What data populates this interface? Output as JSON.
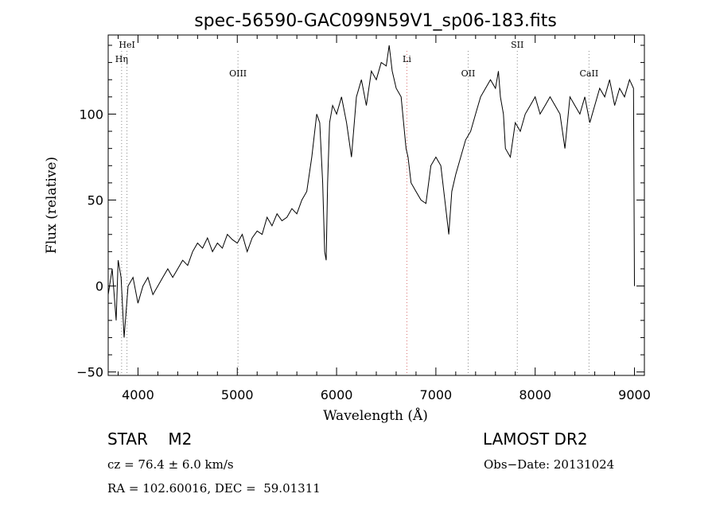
{
  "chart_data": {
    "type": "line",
    "title": "spec-56590-GAC099N59V1_sp06-183.fits",
    "xlabel": "Wavelength (Å)",
    "ylabel": "Flux (relative)",
    "xlim": [
      3700,
      9100
    ],
    "ylim": [
      -52,
      146
    ],
    "xticks": [
      4000,
      5000,
      6000,
      7000,
      8000,
      9000
    ],
    "yticks": [
      -50,
      0,
      50,
      100
    ],
    "xtick_labels": [
      "4000",
      "5000",
      "6000",
      "7000",
      "8000",
      "9000"
    ],
    "ytick_labels": [
      "−50",
      "0",
      "50",
      "100"
    ],
    "series": [
      {
        "x": [
          3700,
          3740,
          3780,
          3800,
          3830,
          3860,
          3900,
          3950,
          4000,
          4050,
          4100,
          4150,
          4200,
          4250,
          4300,
          4350,
          4400,
          4450,
          4500,
          4550,
          4600,
          4650,
          4700,
          4750,
          4800,
          4850,
          4900,
          4950,
          5000,
          5050,
          5100,
          5150,
          5200,
          5250,
          5300,
          5350,
          5400,
          5450,
          5500,
          5550,
          5600,
          5650,
          5700,
          5750,
          5800,
          5830,
          5860,
          5880,
          5895,
          5910,
          5930,
          5960,
          6000,
          6050,
          6100,
          6150,
          6200,
          6250,
          6300,
          6350,
          6400,
          6450,
          6500,
          6530,
          6560,
          6600,
          6650,
          6700,
          6720,
          6750,
          6800,
          6850,
          6900,
          6950,
          7000,
          7050,
          7100,
          7130,
          7160,
          7200,
          7250,
          7300,
          7350,
          7400,
          7450,
          7500,
          7550,
          7600,
          7630,
          7650,
          7680,
          7700,
          7750,
          7800,
          7850,
          7900,
          7950,
          8000,
          8050,
          8100,
          8150,
          8200,
          8250,
          8300,
          8350,
          8400,
          8450,
          8500,
          8550,
          8600,
          8650,
          8700,
          8750,
          8800,
          8850,
          8900,
          8950,
          8990,
          9000
        ],
        "y": [
          -5,
          10,
          -20,
          15,
          5,
          -30,
          0,
          5,
          -10,
          0,
          5,
          -5,
          0,
          5,
          10,
          5,
          10,
          15,
          12,
          20,
          25,
          22,
          28,
          20,
          25,
          22,
          30,
          27,
          25,
          30,
          20,
          28,
          32,
          30,
          40,
          35,
          42,
          38,
          40,
          45,
          42,
          50,
          55,
          75,
          100,
          95,
          60,
          20,
          15,
          60,
          95,
          105,
          100,
          110,
          95,
          75,
          110,
          120,
          105,
          125,
          120,
          130,
          128,
          140,
          125,
          115,
          110,
          80,
          75,
          60,
          55,
          50,
          48,
          70,
          75,
          70,
          45,
          30,
          55,
          65,
          75,
          85,
          90,
          100,
          110,
          115,
          120,
          115,
          125,
          110,
          100,
          80,
          75,
          95,
          90,
          100,
          105,
          110,
          100,
          105,
          110,
          105,
          100,
          80,
          110,
          105,
          100,
          110,
          95,
          105,
          115,
          110,
          120,
          105,
          115,
          110,
          120,
          115,
          0
        ]
      }
    ],
    "line_markers": [
      {
        "label": "HeI",
        "x": 3889,
        "color": "#888888",
        "label_row": 0
      },
      {
        "label": "Hη",
        "x": 3835,
        "color": "#888888",
        "label_row": 1
      },
      {
        "label": "OIII",
        "x": 5007,
        "color": "#888888",
        "label_row": 2
      },
      {
        "label": "Li",
        "x": 6708,
        "color": "#d87070",
        "label_row": 1
      },
      {
        "label": "OII",
        "x": 7325,
        "color": "#888888",
        "label_row": 2
      },
      {
        "label": "SII",
        "x": 7820,
        "color": "#888888",
        "label_row": 0
      },
      {
        "label": "CaII",
        "x": 8542,
        "color": "#888888",
        "label_row": 2
      }
    ],
    "grid": false,
    "legend": "none"
  },
  "info": {
    "star_class": "STAR    M2",
    "survey": "LAMOST DR2",
    "cz": "cz = 76.4 ± 6.0 km/s",
    "obs_date": "Obs−Date: 20131024",
    "radec": "RA = 102.60016, DEC =  59.01311"
  }
}
